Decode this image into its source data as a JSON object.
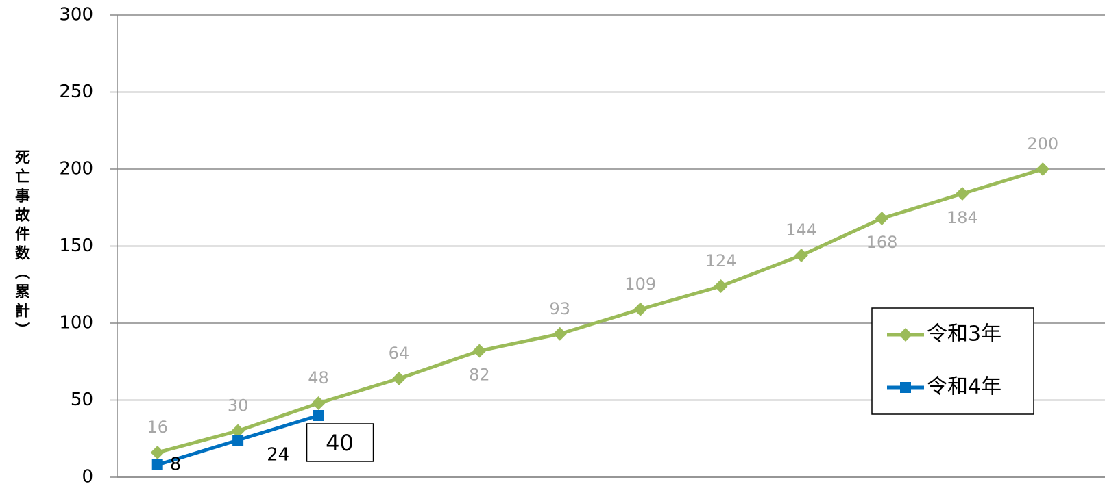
{
  "chart_data": {
    "type": "line",
    "y_label": "死亡事故件数（累計）",
    "categories": [
      null,
      null,
      null,
      null,
      null,
      null,
      null,
      null,
      null,
      null,
      null,
      null
    ],
    "series": [
      {
        "name": "令和3年",
        "color": "#9bbb59",
        "marker": "diamond",
        "values": [
          16,
          30,
          48,
          64,
          82,
          93,
          109,
          124,
          144,
          168,
          184,
          200
        ]
      },
      {
        "name": "令和4年",
        "color": "#0070c0",
        "marker": "square",
        "values": [
          8,
          24,
          40,
          null,
          null,
          null,
          null,
          null,
          null,
          null,
          null,
          null
        ]
      }
    ],
    "ylim": [
      0,
      300
    ],
    "yticks": [
      0,
      50,
      100,
      150,
      200,
      250,
      300
    ],
    "grid": true,
    "legend": "right"
  }
}
